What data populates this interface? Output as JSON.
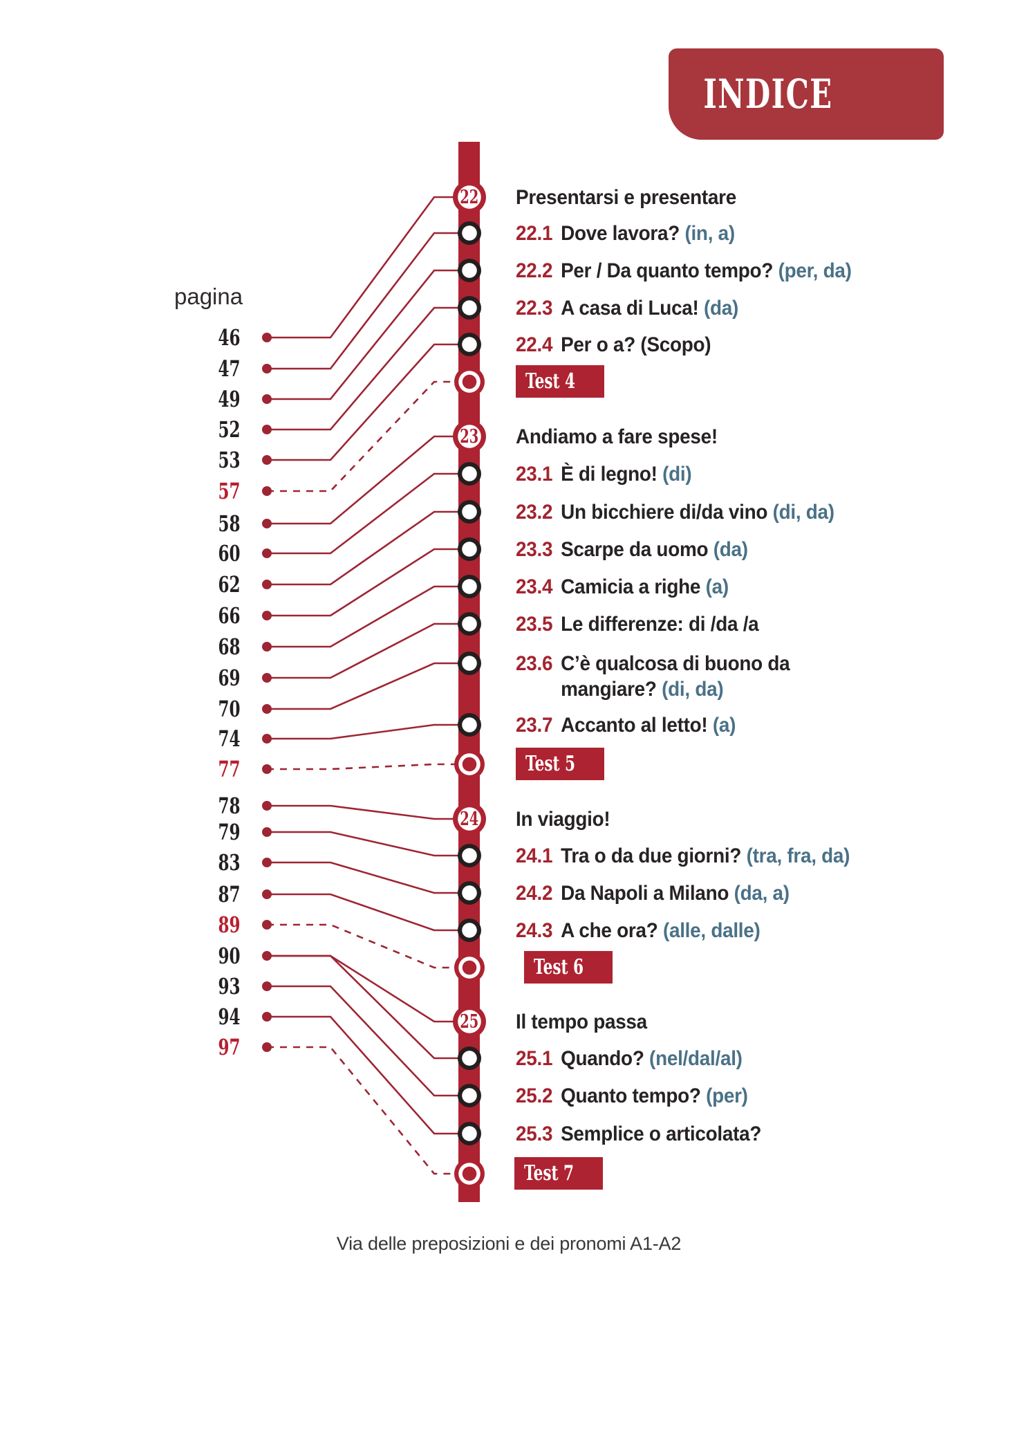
{
  "header": {
    "title": "INDICE"
  },
  "left": {
    "pagina_label": "pagina"
  },
  "footer": {
    "text": "Via delle preposizioni e dei pronomi A1-A2"
  },
  "colors": {
    "bar_red": "#ae2331",
    "banner_red": "#a8363d",
    "line_maroon": "#9e2533",
    "dark_text": "#272324",
    "preposition_teal": "#4a7187",
    "section_number_red": "#a3242f",
    "page_number_red": "#b71f2e",
    "page_number_black": "#242021",
    "section_node_border": "#241e1f"
  },
  "chapters": [
    {
      "number": "22",
      "title": "Presentarsi e presentare",
      "sections": [
        {
          "id": "22.1",
          "title": "Dove lavora?",
          "prep": "(in, a)"
        },
        {
          "id": "22.2",
          "title": "Per / Da quanto tempo?",
          "prep": "(per, da)"
        },
        {
          "id": "22.3",
          "title": "A casa di Luca!",
          "prep": "(da)"
        },
        {
          "id": "22.4",
          "title": "Per o a? (Scopo)",
          "prep": ""
        }
      ],
      "test": "Test 4"
    },
    {
      "number": "23",
      "title": "Andiamo a fare spese!",
      "sections": [
        {
          "id": "23.1",
          "title": "È di legno!",
          "prep": "(di)"
        },
        {
          "id": "23.2",
          "title": "Un bicchiere di/da vino",
          "prep": "(di, da)"
        },
        {
          "id": "23.3",
          "title": "Scarpe da uomo",
          "prep": "(da)"
        },
        {
          "id": "23.4",
          "title": "Camicia a righe",
          "prep": "(a)"
        },
        {
          "id": "23.5",
          "title": "Le differenze: di /da /a",
          "prep": ""
        },
        {
          "id": "23.6",
          "title": "C’è qualcosa di buono da",
          "title2": "mangiare?",
          "prep": "(di, da)"
        },
        {
          "id": "23.7",
          "title": "Accanto al letto!",
          "prep": "(a)"
        }
      ],
      "test": "Test 5"
    },
    {
      "number": "24",
      "title": "In viaggio!",
      "sections": [
        {
          "id": "24.1",
          "title": "Tra o da due giorni?",
          "prep": "(tra, fra, da)"
        },
        {
          "id": "24.2",
          "title": "Da Napoli a Milano",
          "prep": "(da, a)"
        },
        {
          "id": "24.3",
          "title": "A che ora?",
          "prep": "(alle, dalle)"
        }
      ],
      "test": "Test 6"
    },
    {
      "number": "25",
      "title": "Il tempo passa",
      "sections": [
        {
          "id": "25.1",
          "title": "Quando?",
          "prep": "(nel/dal/al)"
        },
        {
          "id": "25.2",
          "title": "Quanto tempo?",
          "prep": "(per)"
        },
        {
          "id": "25.3",
          "title": "Semplice o articolata?",
          "prep": ""
        }
      ],
      "test": "Test 7"
    }
  ],
  "pages": [
    {
      "label": "46",
      "targets": [
        "22"
      ],
      "dashed": false,
      "red": false
    },
    {
      "label": "47",
      "targets": [
        "22.1"
      ],
      "dashed": false,
      "red": false
    },
    {
      "label": "49",
      "targets": [
        "22.2"
      ],
      "dashed": false,
      "red": false
    },
    {
      "label": "52",
      "targets": [
        "22.3"
      ],
      "dashed": false,
      "red": false
    },
    {
      "label": "53",
      "targets": [
        "22.4"
      ],
      "dashed": false,
      "red": false
    },
    {
      "label": "57",
      "targets": [
        "Test 4"
      ],
      "dashed": true,
      "red": true
    },
    {
      "label": "58",
      "targets": [
        "23"
      ],
      "dashed": false,
      "red": false
    },
    {
      "label": "60",
      "targets": [
        "23.1"
      ],
      "dashed": false,
      "red": false
    },
    {
      "label": "62",
      "targets": [
        "23.2"
      ],
      "dashed": false,
      "red": false
    },
    {
      "label": "66",
      "targets": [
        "23.3"
      ],
      "dashed": false,
      "red": false
    },
    {
      "label": "68",
      "targets": [
        "23.4"
      ],
      "dashed": false,
      "red": false
    },
    {
      "label": "69",
      "targets": [
        "23.5"
      ],
      "dashed": false,
      "red": false
    },
    {
      "label": "70",
      "targets": [
        "23.6"
      ],
      "dashed": false,
      "red": false
    },
    {
      "label": "74",
      "targets": [
        "23.7"
      ],
      "dashed": false,
      "red": false
    },
    {
      "label": "77",
      "targets": [
        "Test 5"
      ],
      "dashed": true,
      "red": true
    },
    {
      "label": "78",
      "targets": [
        "24"
      ],
      "dashed": false,
      "red": false
    },
    {
      "label": "79",
      "targets": [
        "24.1"
      ],
      "dashed": false,
      "red": false
    },
    {
      "label": "83",
      "targets": [
        "24.2"
      ],
      "dashed": false,
      "red": false
    },
    {
      "label": "87",
      "targets": [
        "24.3"
      ],
      "dashed": false,
      "red": false
    },
    {
      "label": "89",
      "targets": [
        "Test 6"
      ],
      "dashed": true,
      "red": true
    },
    {
      "label": "90",
      "targets": [
        "25",
        "25.1"
      ],
      "dashed": false,
      "red": false
    },
    {
      "label": "93",
      "targets": [
        "25.2"
      ],
      "dashed": false,
      "red": false
    },
    {
      "label": "94",
      "targets": [
        "25.3"
      ],
      "dashed": false,
      "red": false
    },
    {
      "label": "97",
      "targets": [
        "Test 7"
      ],
      "dashed": true,
      "red": true
    }
  ]
}
